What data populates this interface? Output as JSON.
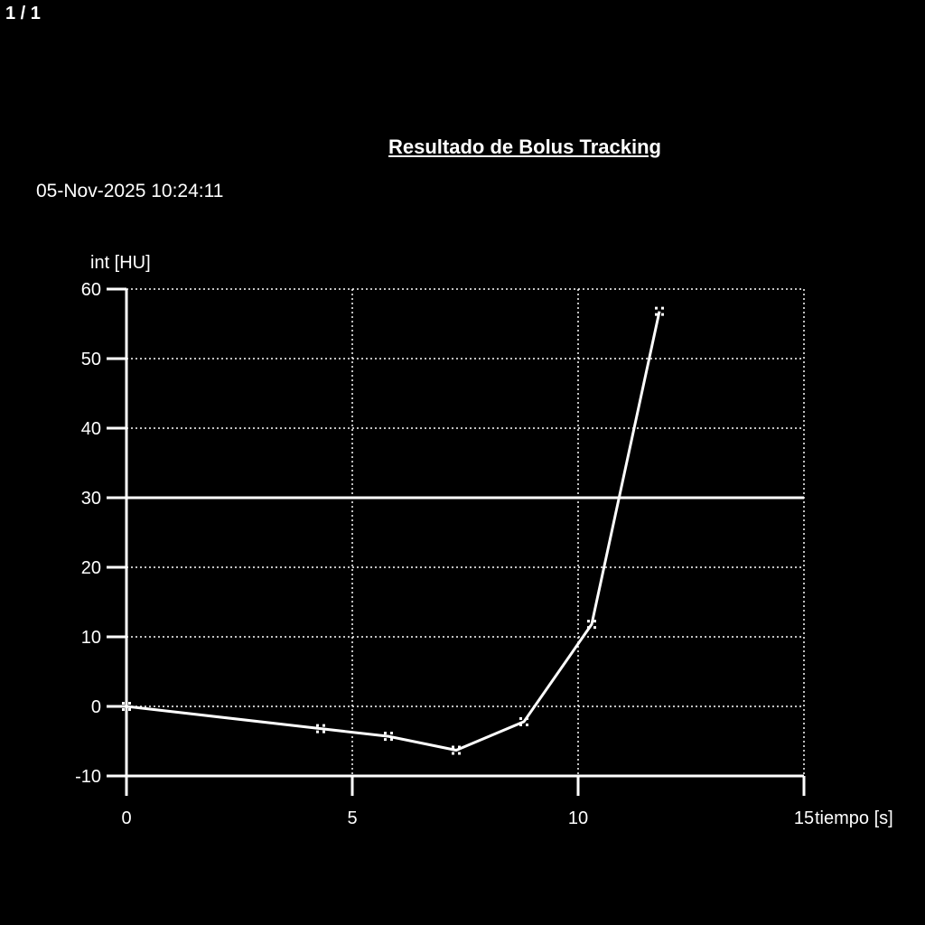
{
  "page_indicator": "1 / 1",
  "header": {
    "title": "Resultado de Bolus Tracking",
    "datetime": "05-Nov-2025 10:24:11"
  },
  "chart_data": {
    "type": "line",
    "title": "Resultado de Bolus Tracking",
    "xlabel": "tiempo [s]",
    "ylabel": "int [HU]",
    "xlim": [
      0,
      15
    ],
    "ylim": [
      -10,
      60
    ],
    "xticks": [
      0,
      5,
      10,
      15
    ],
    "yticks": [
      -10,
      0,
      10,
      20,
      30,
      40,
      50,
      60
    ],
    "grid": true,
    "threshold": 30,
    "colors": {
      "background": "#000000",
      "line": "#ffffff"
    },
    "series": [
      {
        "x": [
          0,
          4.3,
          5.8,
          7.3,
          8.8,
          10.3,
          11.8
        ],
        "y": [
          0,
          -3.2,
          -4.3,
          -6.3,
          -2.2,
          11.8,
          56.8
        ]
      }
    ]
  }
}
